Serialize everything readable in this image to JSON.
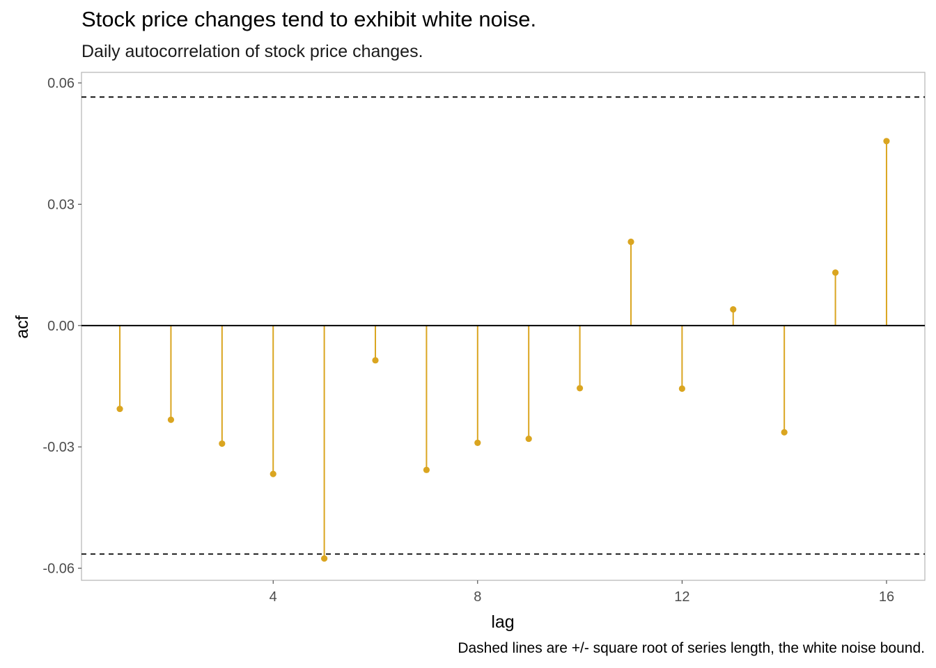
{
  "chart_data": {
    "type": "lollipop",
    "title": "Stock price changes tend to exhibit white noise.",
    "subtitle": "Daily autocorrelation of stock price changes.",
    "caption": "Dashed lines are +/- square root of series length, the white noise bound.",
    "xlabel": "lag",
    "ylabel": "acf",
    "x": [
      1,
      2,
      3,
      4,
      5,
      6,
      7,
      8,
      9,
      10,
      11,
      12,
      13,
      14,
      15,
      16
    ],
    "values": [
      -0.0206,
      -0.0233,
      -0.0292,
      -0.0367,
      -0.0576,
      -0.0086,
      -0.0357,
      -0.029,
      -0.028,
      -0.0155,
      0.0207,
      -0.0156,
      0.004,
      -0.0264,
      0.0131,
      0.0456
    ],
    "x_ticks": [
      4,
      8,
      12,
      16
    ],
    "x_tick_labels": [
      "4",
      "8",
      "12",
      "16"
    ],
    "y_ticks": [
      -0.06,
      -0.03,
      0.0,
      0.03,
      0.06
    ],
    "y_tick_labels": [
      "-0.06",
      "-0.03",
      "0.00",
      "0.03",
      "0.06"
    ],
    "xlim": [
      0.25,
      16.75
    ],
    "ylim": [
      -0.063,
      0.0626
    ],
    "bound": 0.0565,
    "grid": false,
    "colors": {
      "stem": "#DAA520",
      "zero_line": "#000000",
      "bound_line": "#000000",
      "panel_border": "#b3b3b3"
    }
  }
}
